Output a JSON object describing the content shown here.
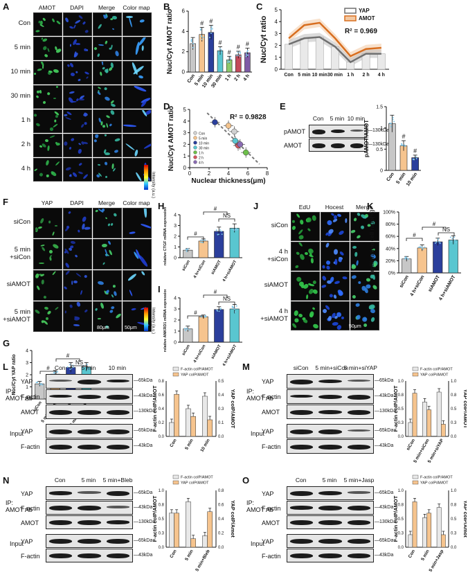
{
  "panels": {
    "A": {
      "label": "A",
      "cols": [
        "AMOT",
        "DAPI",
        "Merge",
        "Color map"
      ],
      "rows": [
        "Con",
        "5 min",
        "10 min",
        "30 min",
        "1 h",
        "2 h",
        "4 h"
      ],
      "scale1": "20μm",
      "scale2": "20μm",
      "intensity": "Intensity (a.u.)"
    },
    "B": {
      "label": "B"
    },
    "C": {
      "label": "C",
      "r2": "R² = 0.969"
    },
    "D": {
      "label": "D",
      "r2": "R² = 0.9828"
    },
    "E": {
      "label": "E",
      "cols": [
        "Con",
        "5 min",
        "10 min"
      ],
      "rows": [
        "pAMOT",
        "AMOT"
      ],
      "kda": [
        "130kDa",
        "130kDa"
      ]
    },
    "F": {
      "label": "F",
      "cols": [
        "YAP",
        "DAPI",
        "Merge",
        "Color map"
      ],
      "rows": [
        "siCon",
        "5 min\n+siCon",
        "siAMOT",
        "5 min\n+siAMOT"
      ],
      "scale1": "80μm",
      "scale2": "50μm",
      "intensity": "Intensity (a.u.)"
    },
    "G": {
      "label": "G"
    },
    "H": {
      "label": "H"
    },
    "I": {
      "label": "I"
    },
    "J": {
      "label": "J",
      "cols": [
        "EdU",
        "Hocest",
        "Merge"
      ],
      "rows": [
        "siCon",
        "4 h\n+siCon",
        "siAMOT",
        "4 h\n+siAMOT"
      ],
      "scale": "50μm"
    },
    "K": {
      "label": "K"
    },
    "L": {
      "label": "L",
      "ip": "IP:\nAMOT Ab",
      "input": "Input",
      "cols": [
        "Con",
        "5 min",
        "10 min"
      ],
      "rows": [
        "YAP",
        "F-actin",
        "AMOT",
        "YAP",
        "F-actin"
      ],
      "kda": [
        "65kDa",
        "43kDa",
        "130kDa",
        "65kDa",
        "43kDa"
      ]
    },
    "M": {
      "label": "M",
      "ip": "IP:\nAMOT Ab",
      "input": "Input",
      "cols": [
        "siCon",
        "5 min+siCon",
        "5 min+siYAP"
      ],
      "rows": [
        "YAP",
        "F-actin",
        "AMOT",
        "YAP",
        "F-actin"
      ],
      "kda": [
        "65kDa",
        "43kDa",
        "130kDa",
        "65kDa",
        "43kDa"
      ]
    },
    "N": {
      "label": "N",
      "ip": "IP:\nAMOT Ab",
      "input": "Input",
      "cols": [
        "Con",
        "5 min",
        "5 min+Bleb"
      ],
      "rows": [
        "YAP",
        "F-actin",
        "AMOT",
        "YAP",
        "F-actin"
      ],
      "kda": [
        "65kDa",
        "43kDa",
        "130kDa",
        "65kDa",
        "43kDa"
      ]
    },
    "O": {
      "label": "O",
      "ip": "IP:\nAMOT Ab",
      "input": "Input",
      "cols": [
        "Con",
        "5 min",
        "5 min+Jasp"
      ],
      "rows": [
        "YAP",
        "F-actin",
        "AMOT",
        "YAP",
        "F-actin"
      ],
      "kda": [
        "65kDa",
        "43kDa",
        "130kDa",
        "65kDa",
        "43kDa"
      ]
    }
  },
  "chart_data": [
    {
      "id": "B",
      "type": "bar",
      "categories": [
        "Con",
        "5 min",
        "10 min",
        "30 min",
        "1 h",
        "2 h",
        "4 h"
      ],
      "values": [
        2.8,
        3.7,
        3.9,
        2.1,
        1.2,
        1.7,
        1.9
      ],
      "errors": [
        0.6,
        0.7,
        0.7,
        0.4,
        0.35,
        0.35,
        0.45
      ],
      "ylabel": "Nuc/Cyt AMOT ratio",
      "ylim": [
        0,
        6
      ],
      "yticks": [
        0,
        2,
        4,
        6
      ],
      "sig": [
        "",
        "#",
        "#",
        "#",
        "#",
        "#",
        "#"
      ],
      "colors": [
        "#c7c7c7",
        "#f6c48e",
        "#2b3f9c",
        "#59c6d0",
        "#8cc96b",
        "#c44a5a",
        "#7e5ba6"
      ]
    },
    {
      "id": "C",
      "type": "line",
      "categories": [
        "Con",
        "5 min",
        "10 min",
        "30 min",
        "1 h",
        "2 h",
        "4 h"
      ],
      "series": [
        {
          "name": "YAP",
          "values": [
            2.1,
            2.6,
            2.7,
            1.9,
            0.6,
            1.3,
            1.3
          ]
        },
        {
          "name": "AMOT",
          "values": [
            2.6,
            3.7,
            3.9,
            2.6,
            1.1,
            1.7,
            1.8
          ]
        }
      ],
      "ylabel": "Nuc/Cyt ratio",
      "ylim": [
        0,
        5
      ],
      "yticks": [
        0,
        1,
        2,
        3,
        4,
        5
      ],
      "legend": "top-right"
    },
    {
      "id": "D",
      "type": "scatter",
      "points": [
        {
          "name": "Con",
          "x": 4.6,
          "y": 3.1,
          "color": "#d0d0d0"
        },
        {
          "name": "5 min",
          "x": 4.0,
          "y": 3.6,
          "color": "#f2c38e"
        },
        {
          "name": "10 min",
          "x": 2.6,
          "y": 3.9,
          "color": "#2b3f9c"
        },
        {
          "name": "30 min",
          "x": 4.7,
          "y": 2.3,
          "color": "#59c6d0"
        },
        {
          "name": "1 h",
          "x": 5.8,
          "y": 1.3,
          "color": "#6dbf4a"
        },
        {
          "name": "2 h",
          "x": 5.0,
          "y": 1.9,
          "color": "#d4565e"
        },
        {
          "name": "4 h",
          "x": 5.2,
          "y": 2.0,
          "color": "#8a6bb3"
        }
      ],
      "xlabel": "Nuclear thickness(μm)",
      "ylabel": "Nuc/Cyt AMOT ratio",
      "xlim": [
        0,
        8
      ],
      "ylim": [
        0,
        5
      ],
      "xticks": [
        0,
        2,
        4,
        6,
        8
      ],
      "yticks": [
        0,
        1,
        2,
        3,
        4,
        5
      ]
    },
    {
      "id": "E",
      "type": "bar",
      "categories": [
        "Con",
        "5 min",
        "10 min"
      ],
      "values": [
        1.1,
        0.58,
        0.3
      ],
      "errors": [
        0.2,
        0.12,
        0.06
      ],
      "ylabel": "pAMOT/AMOT",
      "ylim": [
        0,
        1.5
      ],
      "yticks": [
        0.0,
        0.5,
        1.0,
        1.5
      ],
      "sig": [
        "",
        "#",
        "#"
      ],
      "colors": [
        "#c7c7c7",
        "#f6c48e",
        "#2b3f9c"
      ]
    },
    {
      "id": "G",
      "type": "bar",
      "categories": [
        "siCon",
        "5 min+siCon",
        "siAMOT",
        "5 min+siAMOT"
      ],
      "values": [
        1.25,
        2.05,
        2.6,
        2.65
      ],
      "errors": [
        0.2,
        0.3,
        0.4,
        0.35
      ],
      "ylabel": "Nuc/Cyt YAP ratio",
      "ylim": [
        0,
        4
      ],
      "yticks": [
        0,
        1,
        2,
        3,
        4
      ],
      "colors": [
        "#c7c7c7",
        "#f6c48e",
        "#2b3f9c",
        "#59c6d0"
      ]
    },
    {
      "id": "H",
      "type": "bar",
      "categories": [
        "siCon",
        "4 h+siCon",
        "siAMOT",
        "4 h+siAMOT"
      ],
      "values": [
        0.7,
        1.55,
        2.45,
        2.75
      ],
      "errors": [
        0.15,
        0.2,
        0.4,
        0.4
      ],
      "ylabel": "relative CTGF mRNA expression",
      "ylim": [
        0,
        4
      ],
      "yticks": [
        0,
        1,
        2,
        3,
        4
      ],
      "colors": [
        "#c7c7c7",
        "#f6c48e",
        "#2b3f9c",
        "#59c6d0"
      ]
    },
    {
      "id": "I",
      "type": "bar",
      "categories": [
        "siCon",
        "4 h+siCon",
        "siAMOT",
        "4 h+siAMOT"
      ],
      "values": [
        1.2,
        2.3,
        2.95,
        3.0
      ],
      "errors": [
        0.25,
        0.15,
        0.25,
        0.4
      ],
      "ylabel": "relative ANKRD1 mRNA expression",
      "ylim": [
        0,
        4
      ],
      "yticks": [
        0,
        1,
        2,
        3,
        4
      ],
      "colors": [
        "#c7c7c7",
        "#f6c48e",
        "#2b3f9c",
        "#59c6d0"
      ]
    },
    {
      "id": "K",
      "type": "bar",
      "categories": [
        "siCon",
        "4 h+siCon",
        "siAMOT",
        "4 h+siAMOT"
      ],
      "values": [
        23,
        41,
        51,
        54
      ],
      "errors": [
        4,
        5,
        6,
        7
      ],
      "ylabel": "proliferation cell ratio(%)",
      "ylim": [
        0,
        100
      ],
      "yticks": [
        "0%",
        "20%",
        "40%",
        "60%",
        "80%",
        "100%"
      ],
      "colors": [
        "#c7c7c7",
        "#f6c48e",
        "#2b3f9c",
        "#59c6d0"
      ]
    },
    {
      "id": "L",
      "type": "bar",
      "categories": [
        "Con",
        "5 min",
        "10 min"
      ],
      "series": [
        {
          "name": "F-actin coIP/AMOT",
          "values": [
            0.2,
            0.4,
            0.58
          ],
          "color": "#e8e8e8"
        },
        {
          "name": "YAP coIP/AMOT",
          "values": [
            0.38,
            0.18,
            0.15
          ],
          "color": "#f6c48e"
        }
      ],
      "ylabel": "F-actin coIP/AMOT",
      "y2label": "YAP coIP/AMOT",
      "ylim": [
        0,
        0.8
      ],
      "y2lim": [
        0,
        0.5
      ]
    },
    {
      "id": "M",
      "type": "bar",
      "categories": [
        "siCon",
        "5 min+siCon",
        "5 min+siYAP"
      ],
      "series": [
        {
          "name": "F-actin coIP/AMOT",
          "values": [
            0.25,
            0.62,
            0.8
          ],
          "color": "#e8e8e8"
        },
        {
          "name": "YAP coIP/AMOT",
          "values": [
            0.78,
            0.48,
            0.22
          ],
          "color": "#f6c48e"
        }
      ],
      "ylabel": "F-actin coIP/AMOT",
      "y2label": "YAP coIP/AMOT",
      "ylim": [
        0,
        1.0
      ],
      "y2lim": [
        0,
        1.0
      ]
    },
    {
      "id": "N",
      "type": "bar",
      "categories": [
        "Con",
        "5 min",
        "5 min+Bleb"
      ],
      "series": [
        {
          "name": "F-actin coIP/AMOT",
          "values": [
            0.6,
            0.8,
            0.2
          ],
          "color": "#e8e8e8"
        },
        {
          "name": "YAP coIP/AMOT",
          "values": [
            0.48,
            0.12,
            0.5
          ],
          "color": "#f6c48e"
        }
      ],
      "ylabel": "F-actin coIP/AMOT",
      "y2label": "YAP coIP/Amot",
      "ylim": [
        0,
        1.0
      ],
      "y2lim": [
        0,
        0.8
      ]
    },
    {
      "id": "O",
      "type": "bar",
      "categories": [
        "Con",
        "5 min",
        "5 min+Jasp"
      ],
      "series": [
        {
          "name": "F-actin coIP/AMOT",
          "values": [
            0.22,
            0.52,
            0.7
          ],
          "color": "#e8e8e8"
        },
        {
          "name": "YAP coIP/AMOT",
          "values": [
            0.8,
            0.6,
            0.22
          ],
          "color": "#f6c48e"
        }
      ],
      "ylabel": "F-actin coIP/AMOT",
      "y2label": "YAP coIP/Amot",
      "ylim": [
        0,
        1.0
      ],
      "y2lim": [
        0,
        1.0
      ]
    }
  ]
}
